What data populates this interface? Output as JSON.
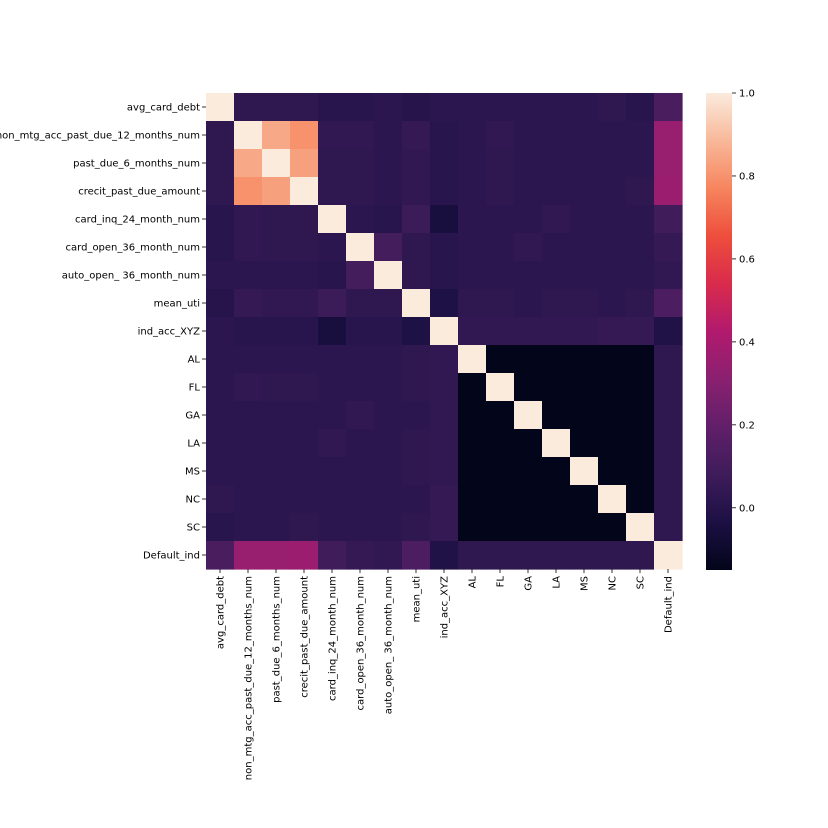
{
  "chart_data": {
    "type": "heatmap",
    "labels": [
      "avg_card_debt",
      "non_mtg_acc_past_due_12_months_num",
      "past_due_6_months_num",
      "crecit_past_due_amount",
      "card_inq_24_month_num",
      "card_open_36_month_num",
      "auto_open_ 36_month_num",
      "mean_uti",
      "ind_acc_XYZ",
      "AL",
      "FL",
      "GA",
      "LA",
      "MS",
      "NC",
      "SC",
      "Default_ind"
    ],
    "matrix": [
      [
        1.0,
        0.03,
        0.03,
        0.03,
        0.01,
        0.01,
        0.02,
        0.0,
        0.02,
        0.02,
        0.02,
        0.02,
        0.02,
        0.02,
        0.03,
        0.01,
        0.12
      ],
      [
        0.03,
        1.0,
        0.85,
        0.8,
        0.04,
        0.04,
        0.02,
        0.05,
        0.01,
        0.02,
        0.04,
        0.02,
        0.02,
        0.02,
        0.02,
        0.02,
        0.35
      ],
      [
        0.03,
        0.85,
        1.0,
        0.83,
        0.03,
        0.03,
        0.02,
        0.04,
        0.01,
        0.02,
        0.03,
        0.02,
        0.02,
        0.02,
        0.02,
        0.02,
        0.35
      ],
      [
        0.03,
        0.8,
        0.83,
        1.0,
        0.03,
        0.03,
        0.02,
        0.04,
        0.01,
        0.02,
        0.03,
        0.02,
        0.02,
        0.02,
        0.02,
        0.03,
        0.36
      ],
      [
        0.01,
        0.04,
        0.03,
        0.03,
        1.0,
        0.02,
        0.01,
        0.07,
        -0.05,
        0.02,
        0.02,
        0.02,
        0.04,
        0.02,
        0.02,
        0.02,
        0.09
      ],
      [
        0.01,
        0.04,
        0.03,
        0.03,
        0.02,
        1.0,
        0.1,
        0.03,
        0.01,
        0.02,
        0.02,
        0.04,
        0.02,
        0.02,
        0.02,
        0.02,
        0.05
      ],
      [
        0.02,
        0.02,
        0.02,
        0.02,
        0.01,
        0.1,
        1.0,
        0.03,
        0.01,
        0.02,
        0.02,
        0.02,
        0.02,
        0.02,
        0.02,
        0.02,
        0.04
      ],
      [
        0.0,
        0.05,
        0.04,
        0.04,
        0.07,
        0.03,
        0.03,
        1.0,
        -0.03,
        0.03,
        0.03,
        0.02,
        0.03,
        0.03,
        0.02,
        0.03,
        0.13
      ],
      [
        0.02,
        0.01,
        0.01,
        0.01,
        -0.05,
        0.01,
        0.01,
        -0.03,
        1.0,
        0.04,
        0.04,
        0.04,
        0.04,
        0.04,
        0.05,
        0.05,
        -0.02
      ],
      [
        0.02,
        0.02,
        0.02,
        0.02,
        0.02,
        0.02,
        0.02,
        0.03,
        0.04,
        1.0,
        -0.15,
        -0.15,
        -0.15,
        -0.15,
        -0.15,
        -0.15,
        0.03
      ],
      [
        0.02,
        0.04,
        0.03,
        0.03,
        0.02,
        0.02,
        0.02,
        0.03,
        0.04,
        -0.15,
        1.0,
        -0.15,
        -0.15,
        -0.15,
        -0.15,
        -0.15,
        0.03
      ],
      [
        0.02,
        0.02,
        0.02,
        0.02,
        0.02,
        0.04,
        0.02,
        0.02,
        0.04,
        -0.15,
        -0.15,
        1.0,
        -0.15,
        -0.15,
        -0.15,
        -0.15,
        0.03
      ],
      [
        0.02,
        0.02,
        0.02,
        0.02,
        0.04,
        0.02,
        0.02,
        0.03,
        0.04,
        -0.15,
        -0.15,
        -0.15,
        1.0,
        -0.15,
        -0.15,
        -0.15,
        0.03
      ],
      [
        0.02,
        0.02,
        0.02,
        0.02,
        0.02,
        0.02,
        0.02,
        0.03,
        0.04,
        -0.15,
        -0.15,
        -0.15,
        -0.15,
        1.0,
        -0.15,
        -0.15,
        0.03
      ],
      [
        0.03,
        0.02,
        0.02,
        0.02,
        0.02,
        0.02,
        0.02,
        0.02,
        0.05,
        -0.15,
        -0.15,
        -0.15,
        -0.15,
        -0.15,
        1.0,
        -0.15,
        0.03
      ],
      [
        0.01,
        0.02,
        0.02,
        0.03,
        0.02,
        0.02,
        0.02,
        0.03,
        0.05,
        -0.15,
        -0.15,
        -0.15,
        -0.15,
        -0.15,
        -0.15,
        1.0,
        0.03
      ],
      [
        0.12,
        0.35,
        0.35,
        0.36,
        0.09,
        0.05,
        0.04,
        0.13,
        -0.02,
        0.03,
        0.03,
        0.03,
        0.03,
        0.03,
        0.03,
        0.03,
        1.0
      ]
    ],
    "vmin": -0.15,
    "vmax": 1.0,
    "colorbar": {
      "ticks": [
        0.0,
        0.2,
        0.4,
        0.6,
        0.8,
        1.0
      ],
      "tick_labels": [
        "0.0",
        "0.2",
        "0.4",
        "0.6",
        "0.8",
        "1.0"
      ]
    },
    "colormap": "rocket",
    "colormap_stops": [
      [
        0.0,
        "#03051a"
      ],
      [
        0.1,
        "#1c1044"
      ],
      [
        0.2,
        "#3e1c5a"
      ],
      [
        0.3,
        "#611f69"
      ],
      [
        0.4,
        "#8a2070"
      ],
      [
        0.5,
        "#b21a6e"
      ],
      [
        0.6,
        "#d92b4c"
      ],
      [
        0.7,
        "#ee4e3c"
      ],
      [
        0.8,
        "#f6855e"
      ],
      [
        0.9,
        "#f8b899"
      ],
      [
        1.0,
        "#faebdd"
      ]
    ],
    "title": "",
    "xlabel": "",
    "ylabel": "",
    "grid": false
  }
}
